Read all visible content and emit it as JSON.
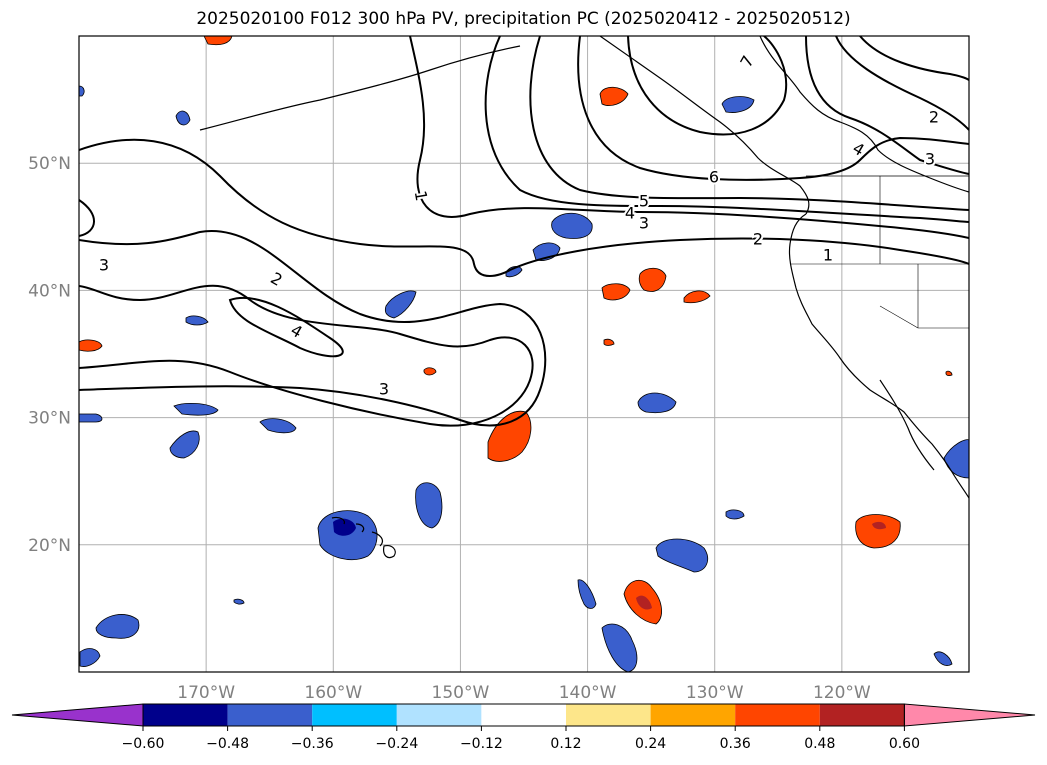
{
  "title": "2025020100 F012 300 hPa PV, precipitation PC (2025020412 - 2025020512)",
  "map": {
    "projection": "PlateCarree",
    "lon_range": [
      -180,
      -110
    ],
    "lat_range": [
      10,
      60
    ],
    "lat_ticks": [
      {
        "value": 50,
        "label": "50°N"
      },
      {
        "value": 40,
        "label": "40°N"
      },
      {
        "value": 30,
        "label": "30°N"
      },
      {
        "value": 20,
        "label": "20°N"
      }
    ],
    "lon_ticks": [
      {
        "value": -170,
        "label": "170°W"
      },
      {
        "value": -160,
        "label": "160°W"
      },
      {
        "value": -150,
        "label": "150°W"
      },
      {
        "value": -140,
        "label": "140°W"
      },
      {
        "value": -130,
        "label": "130°W"
      },
      {
        "value": -120,
        "label": "120°W"
      }
    ],
    "gridlines": true,
    "pv_contour_labels": [
      "1",
      "2",
      "3",
      "4",
      "5",
      "6",
      "7"
    ]
  },
  "colorbar": {
    "orientation": "horizontal",
    "extend": "both",
    "colors": [
      "#9932cc",
      "#00008b",
      "#3a5fcd",
      "#00bfff",
      "#b0e2ff",
      "#ffffff",
      "#fde68a",
      "#ffa500",
      "#ff4500",
      "#b22222",
      "#ff88aa"
    ],
    "tick_labels": [
      "−0.60",
      "−0.48",
      "−0.36",
      "−0.24",
      "−0.12",
      "0.12",
      "0.24",
      "0.36",
      "0.48",
      "0.60"
    ]
  }
}
